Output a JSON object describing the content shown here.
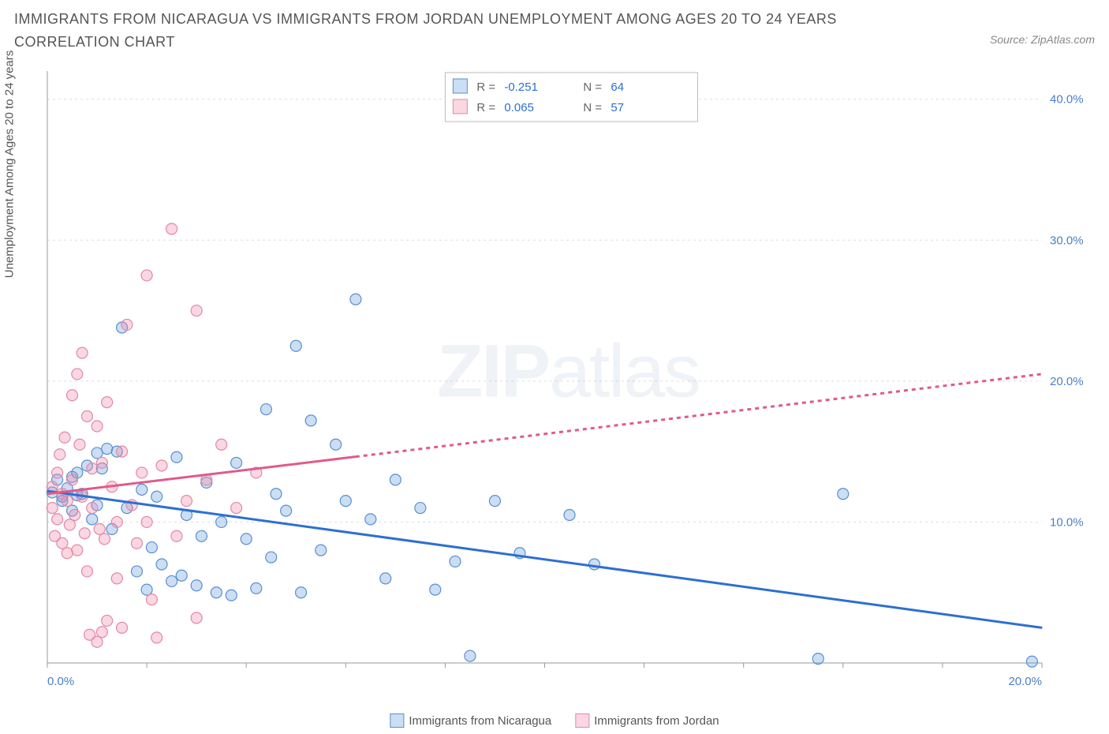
{
  "title": "IMMIGRANTS FROM NICARAGUA VS IMMIGRANTS FROM JORDAN UNEMPLOYMENT AMONG AGES 20 TO 24 YEARS CORRELATION CHART",
  "source_prefix": "Source: ",
  "source_name": "ZipAtlas.com",
  "ylabel": "Unemployment Among Ages 20 to 24 years",
  "watermark_bold": "ZIP",
  "watermark_rest": "atlas",
  "chart": {
    "type": "scatter",
    "background_color": "#ffffff",
    "grid_color": "#dddddd",
    "axis_color": "#999999",
    "xlim": [
      0,
      20
    ],
    "ylim": [
      0,
      42
    ],
    "xticks": [
      0,
      20
    ],
    "xtick_labels": [
      "0.0%",
      "20.0%"
    ],
    "yticks": [
      10,
      20,
      30,
      40
    ],
    "ytick_labels": [
      "10.0%",
      "20.0%",
      "30.0%",
      "40.0%"
    ],
    "ytick_color": "#4a7ec9",
    "marker_radius": 7,
    "marker_stroke_width": 1.2,
    "trend_line_width": 3,
    "trend_dash": "5,5",
    "series": [
      {
        "label": "Immigrants from Nicaragua",
        "fill_color": "rgba(110,160,220,0.35)",
        "stroke_color": "#5a8fd0",
        "line_color": "#2d6fd0",
        "R": "-0.251",
        "N": "64",
        "trend": {
          "x1": 0,
          "y1": 12.2,
          "x2": 20,
          "y2": 2.5,
          "dash_split": 20
        },
        "points": [
          [
            0.1,
            12.1
          ],
          [
            0.2,
            13.0
          ],
          [
            0.3,
            11.5
          ],
          [
            0.4,
            12.4
          ],
          [
            0.5,
            10.8
          ],
          [
            0.5,
            13.2
          ],
          [
            0.6,
            11.9
          ],
          [
            0.7,
            12.0
          ],
          [
            0.8,
            14.0
          ],
          [
            0.9,
            10.2
          ],
          [
            1.0,
            14.9
          ],
          [
            1.0,
            11.2
          ],
          [
            1.1,
            13.8
          ],
          [
            1.2,
            15.2
          ],
          [
            1.3,
            9.5
          ],
          [
            1.4,
            15.0
          ],
          [
            1.5,
            23.8
          ],
          [
            1.6,
            11.0
          ],
          [
            1.8,
            6.5
          ],
          [
            1.9,
            12.3
          ],
          [
            2.0,
            5.2
          ],
          [
            2.1,
            8.2
          ],
          [
            2.2,
            11.8
          ],
          [
            2.3,
            7.0
          ],
          [
            2.5,
            5.8
          ],
          [
            2.6,
            14.6
          ],
          [
            2.7,
            6.2
          ],
          [
            2.8,
            10.5
          ],
          [
            3.0,
            5.5
          ],
          [
            3.1,
            9.0
          ],
          [
            3.2,
            12.8
          ],
          [
            3.4,
            5.0
          ],
          [
            3.5,
            10.0
          ],
          [
            3.7,
            4.8
          ],
          [
            3.8,
            14.2
          ],
          [
            4.0,
            8.8
          ],
          [
            4.2,
            5.3
          ],
          [
            4.4,
            18.0
          ],
          [
            4.5,
            7.5
          ],
          [
            4.6,
            12.0
          ],
          [
            4.8,
            10.8
          ],
          [
            5.0,
            22.5
          ],
          [
            5.1,
            5.0
          ],
          [
            5.3,
            17.2
          ],
          [
            5.5,
            8.0
          ],
          [
            5.8,
            15.5
          ],
          [
            6.0,
            11.5
          ],
          [
            6.2,
            25.8
          ],
          [
            6.5,
            10.2
          ],
          [
            6.8,
            6.0
          ],
          [
            7.0,
            13.0
          ],
          [
            7.5,
            11.0
          ],
          [
            7.8,
            5.2
          ],
          [
            8.2,
            7.2
          ],
          [
            8.5,
            0.5
          ],
          [
            9.0,
            11.5
          ],
          [
            9.5,
            7.8
          ],
          [
            10.5,
            10.5
          ],
          [
            11.0,
            7.0
          ],
          [
            15.5,
            0.3
          ],
          [
            16.0,
            12.0
          ],
          [
            19.8,
            0.1
          ],
          [
            0.3,
            11.8
          ],
          [
            0.6,
            13.5
          ]
        ]
      },
      {
        "label": "Immigrants from Jordan",
        "fill_color": "rgba(240,140,170,0.35)",
        "stroke_color": "#e08aa8",
        "line_color": "#e05a8a",
        "R": "0.065",
        "N": "57",
        "trend": {
          "x1": 0,
          "y1": 12.0,
          "x2": 20,
          "y2": 20.5,
          "dash_split": 6.2
        },
        "points": [
          [
            0.1,
            11.0
          ],
          [
            0.1,
            12.5
          ],
          [
            0.15,
            9.0
          ],
          [
            0.2,
            13.5
          ],
          [
            0.2,
            10.2
          ],
          [
            0.25,
            14.8
          ],
          [
            0.3,
            8.5
          ],
          [
            0.3,
            12.0
          ],
          [
            0.35,
            16.0
          ],
          [
            0.4,
            7.8
          ],
          [
            0.4,
            11.5
          ],
          [
            0.45,
            9.8
          ],
          [
            0.5,
            19.0
          ],
          [
            0.5,
            13.0
          ],
          [
            0.55,
            10.5
          ],
          [
            0.6,
            20.5
          ],
          [
            0.6,
            8.0
          ],
          [
            0.65,
            15.5
          ],
          [
            0.7,
            11.8
          ],
          [
            0.7,
            22.0
          ],
          [
            0.75,
            9.2
          ],
          [
            0.8,
            17.5
          ],
          [
            0.8,
            6.5
          ],
          [
            0.85,
            2.0
          ],
          [
            0.9,
            13.8
          ],
          [
            0.9,
            11.0
          ],
          [
            1.0,
            16.8
          ],
          [
            1.0,
            1.5
          ],
          [
            1.05,
            9.5
          ],
          [
            1.1,
            2.2
          ],
          [
            1.1,
            14.2
          ],
          [
            1.15,
            8.8
          ],
          [
            1.2,
            18.5
          ],
          [
            1.2,
            3.0
          ],
          [
            1.3,
            12.5
          ],
          [
            1.4,
            10.0
          ],
          [
            1.4,
            6.0
          ],
          [
            1.5,
            15.0
          ],
          [
            1.5,
            2.5
          ],
          [
            1.6,
            24.0
          ],
          [
            1.7,
            11.2
          ],
          [
            1.8,
            8.5
          ],
          [
            1.9,
            13.5
          ],
          [
            2.0,
            27.5
          ],
          [
            2.0,
            10.0
          ],
          [
            2.1,
            4.5
          ],
          [
            2.2,
            1.8
          ],
          [
            2.3,
            14.0
          ],
          [
            2.5,
            30.8
          ],
          [
            2.6,
            9.0
          ],
          [
            2.8,
            11.5
          ],
          [
            3.0,
            25.0
          ],
          [
            3.0,
            3.2
          ],
          [
            3.2,
            13.0
          ],
          [
            3.5,
            15.5
          ],
          [
            3.8,
            11.0
          ],
          [
            4.2,
            13.5
          ]
        ]
      }
    ],
    "stats_box": {
      "bg": "#ffffff",
      "border": "#bbbbbb",
      "label_color": "#666666",
      "value_color": "#2d6fd0",
      "R_label": "R =",
      "N_label": "N ="
    }
  }
}
